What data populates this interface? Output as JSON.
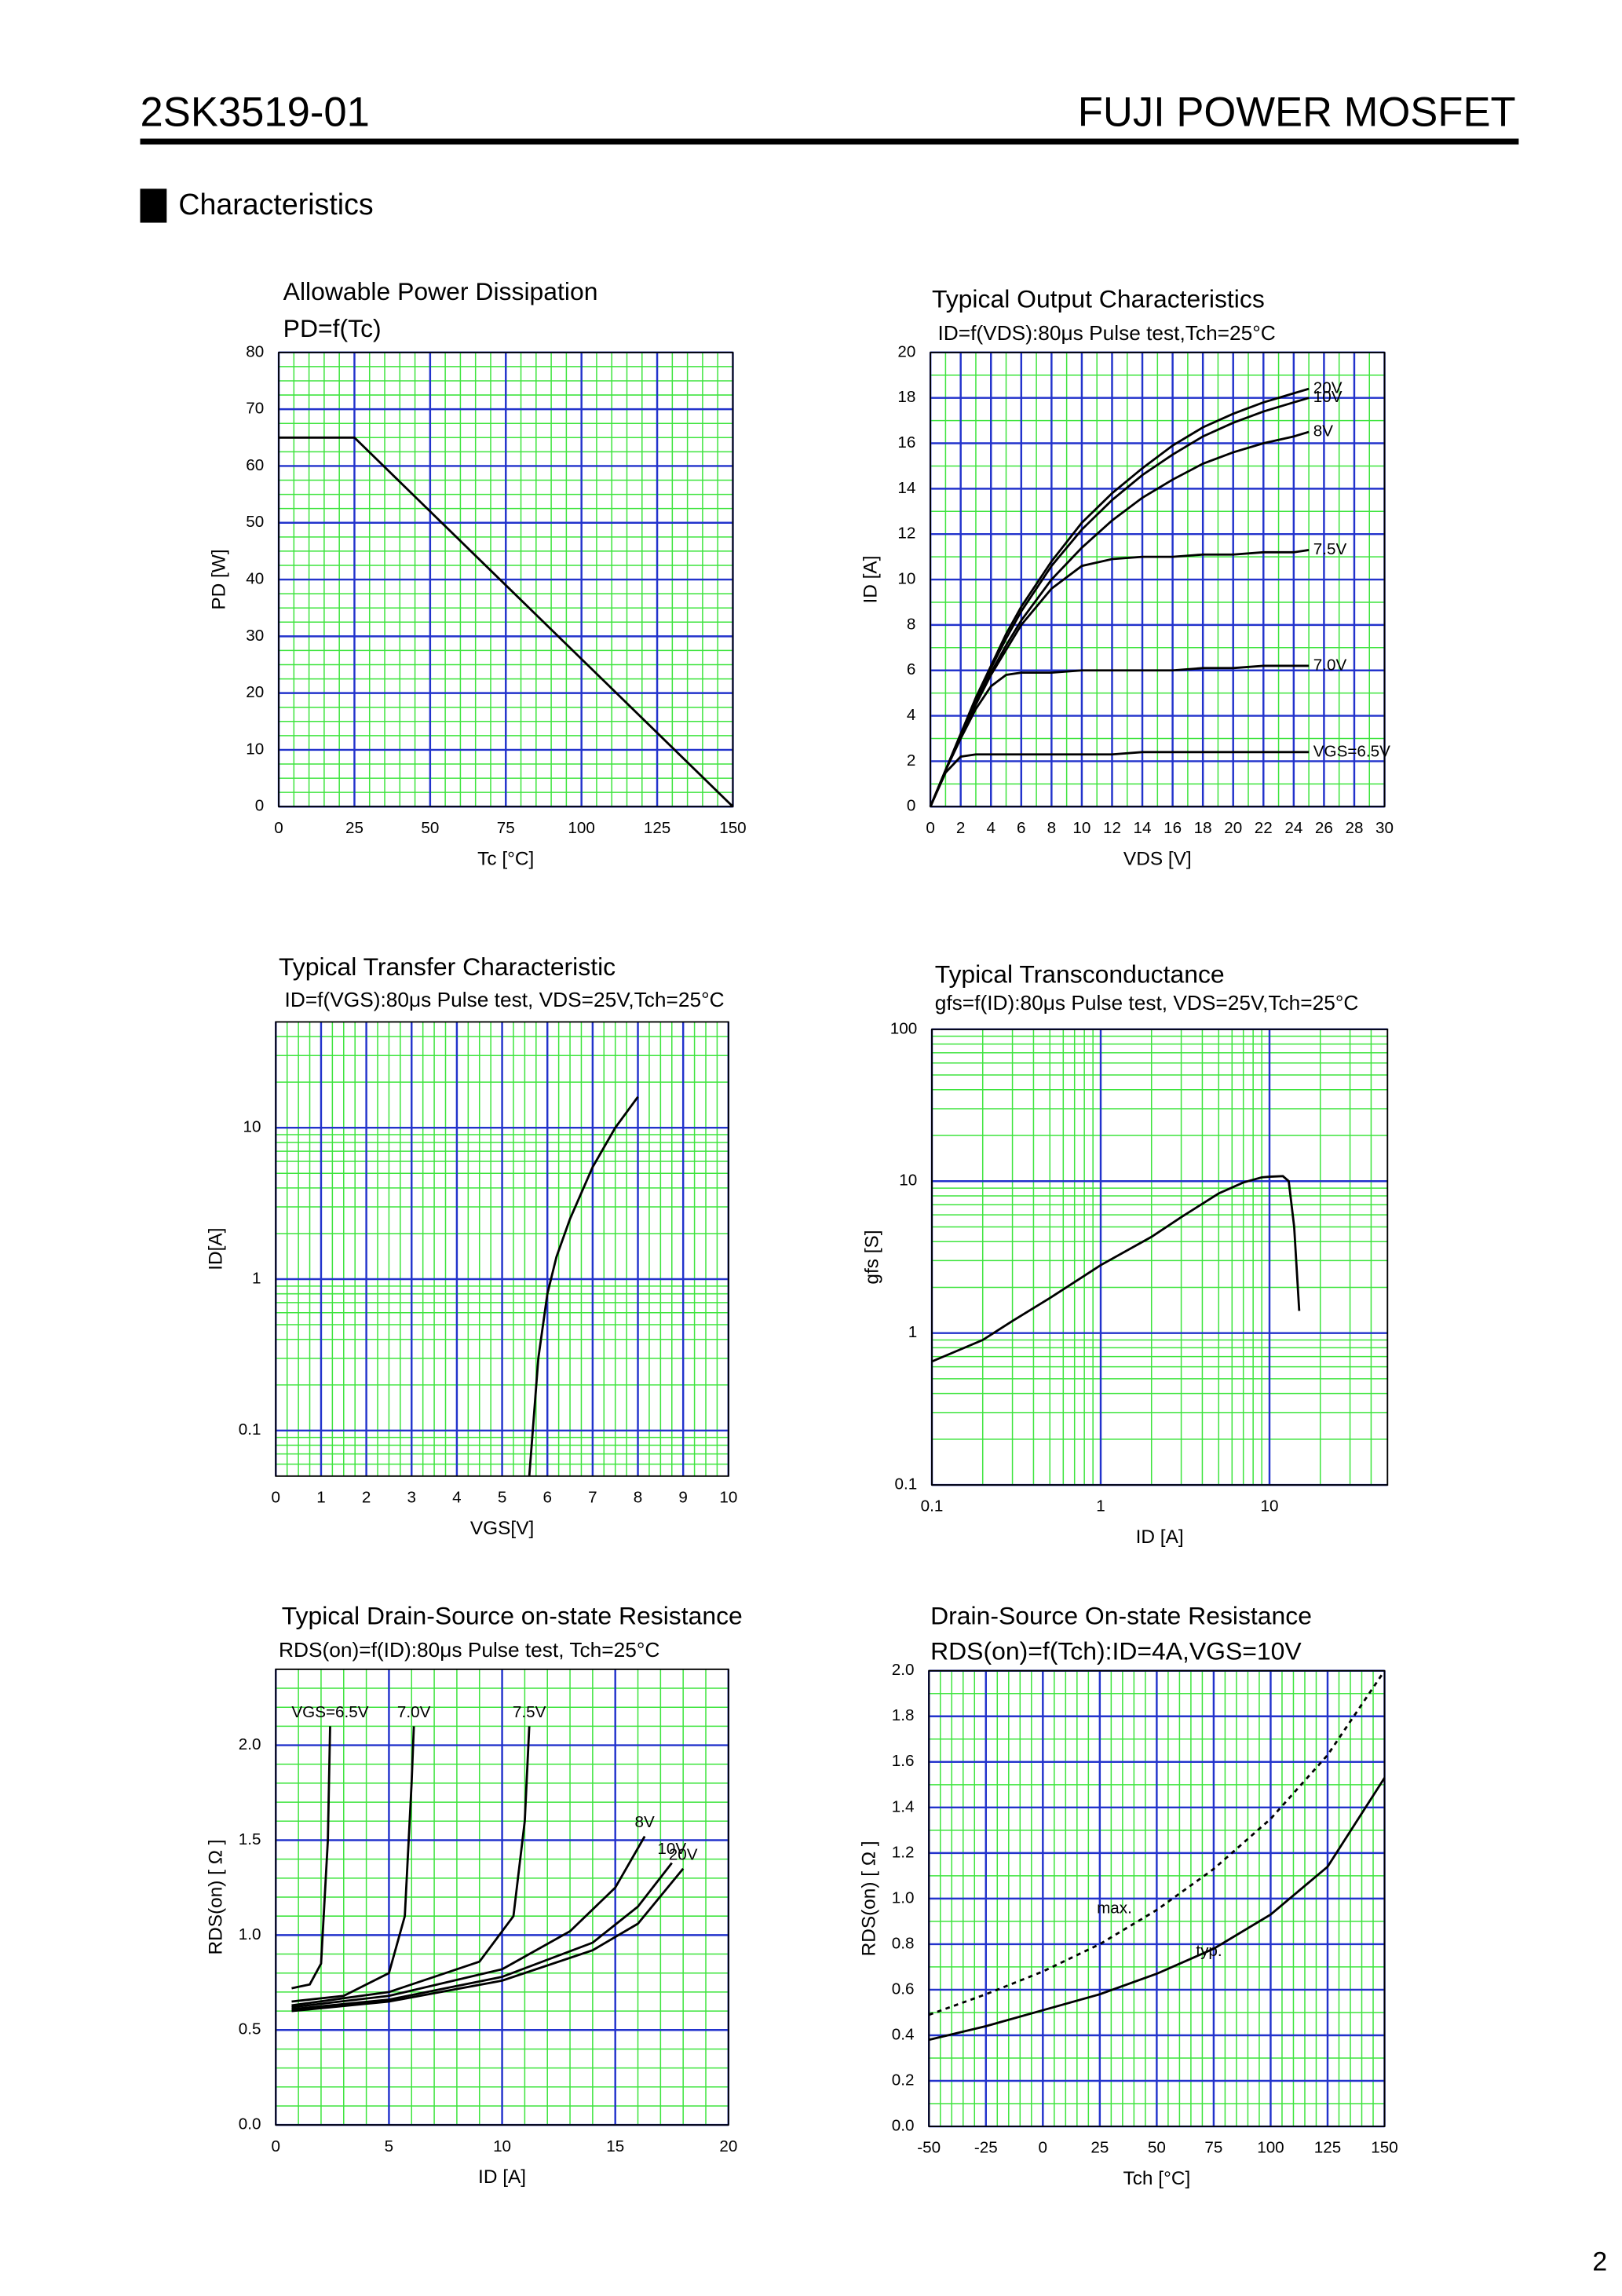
{
  "header": {
    "part": "2SK3519-01",
    "brand": "FUJI POWER MOSFET",
    "section": "Characteristics",
    "page": "2"
  },
  "chart_data": [
    {
      "type": "line",
      "title": "Allowable Power Dissipation",
      "subtitle": "PD=f(Tc)",
      "xlabel": "Tc [°C]",
      "ylabel": "PD [W]",
      "xlim": [
        0,
        150
      ],
      "ylim": [
        0,
        80
      ],
      "xticks": [
        0,
        25,
        50,
        75,
        100,
        125,
        150
      ],
      "yticks": [
        0,
        10,
        20,
        30,
        40,
        50,
        60,
        70,
        80
      ],
      "grid": true,
      "x": [
        0,
        25,
        150
      ],
      "values": [
        65,
        65,
        0
      ],
      "color": "#000000"
    },
    {
      "type": "line",
      "title": "Typical Output Characteristics",
      "subtitle": "ID=f(VDS):80μs Pulse test,Tch=25°C",
      "xlabel": "VDS [V]",
      "ylabel": "ID [A]",
      "xlim": [
        0,
        30
      ],
      "ylim": [
        0,
        20
      ],
      "xticks": [
        0,
        2,
        4,
        6,
        8,
        10,
        12,
        14,
        16,
        18,
        20,
        22,
        24,
        26,
        28,
        30
      ],
      "yticks": [
        0,
        2,
        4,
        6,
        8,
        10,
        12,
        14,
        16,
        18,
        20
      ],
      "grid": true,
      "x": [
        0,
        1,
        2,
        3,
        4,
        5,
        6,
        8,
        10,
        12,
        14,
        16,
        18,
        20,
        22,
        24,
        25
      ],
      "series": [
        {
          "name": "20V",
          "color": "#000000",
          "values": [
            0,
            1.6,
            3.2,
            4.8,
            6.2,
            7.6,
            8.8,
            10.8,
            12.5,
            13.8,
            14.9,
            15.9,
            16.7,
            17.3,
            17.8,
            18.2,
            18.4
          ]
        },
        {
          "name": "10V",
          "color": "#000000",
          "values": [
            0,
            1.6,
            3.2,
            4.7,
            6.1,
            7.4,
            8.6,
            10.6,
            12.2,
            13.5,
            14.6,
            15.5,
            16.3,
            16.9,
            17.4,
            17.8,
            18.0
          ]
        },
        {
          "name": "8V",
          "color": "#000000",
          "values": [
            0,
            1.6,
            3.1,
            4.6,
            5.9,
            7.1,
            8.2,
            10.0,
            11.4,
            12.6,
            13.6,
            14.4,
            15.1,
            15.6,
            16.0,
            16.3,
            16.5
          ]
        },
        {
          "name": "7.5V",
          "color": "#000000",
          "values": [
            0,
            1.6,
            3.1,
            4.5,
            5.8,
            6.9,
            8.0,
            9.6,
            10.6,
            10.9,
            11.0,
            11.0,
            11.1,
            11.1,
            11.2,
            11.2,
            11.3
          ]
        },
        {
          "name": "7.0V",
          "color": "#000000",
          "values": [
            0,
            1.6,
            3.0,
            4.3,
            5.3,
            5.8,
            5.9,
            5.9,
            6.0,
            6.0,
            6.0,
            6.0,
            6.1,
            6.1,
            6.2,
            6.2,
            6.2
          ]
        },
        {
          "name": "VGS=6.5V",
          "color": "#000000",
          "values": [
            0,
            1.5,
            2.2,
            2.3,
            2.3,
            2.3,
            2.3,
            2.3,
            2.3,
            2.3,
            2.4,
            2.4,
            2.4,
            2.4,
            2.4,
            2.4,
            2.4
          ]
        }
      ]
    },
    {
      "type": "line",
      "title": "Typical Transfer Characteristic",
      "subtitle": "ID=f(VGS):80μs Pulse test, VDS=25V,Tch=25°C",
      "xlabel": "VGS[V]",
      "ylabel": "ID[A]",
      "xlim": [
        0,
        10
      ],
      "ylim": [
        0.05,
        50
      ],
      "yscale": "log",
      "xticks": [
        0,
        1,
        2,
        3,
        4,
        5,
        6,
        7,
        8,
        9,
        10
      ],
      "yticks": [
        0.1,
        1,
        10
      ],
      "grid": true,
      "x": [
        5.6,
        5.8,
        6.0,
        6.2,
        6.5,
        7.0,
        7.5,
        8.0
      ],
      "values": [
        0.05,
        0.3,
        0.8,
        1.4,
        2.5,
        5.5,
        10,
        16
      ],
      "color": "#000000"
    },
    {
      "type": "line",
      "title": "Typical Transconductance",
      "subtitle": "gfs=f(ID):80μs Pulse test, VDS=25V,Tch=25°C",
      "xlabel": "ID [A]",
      "ylabel": "gfs [S]",
      "xlim": [
        0.1,
        50
      ],
      "ylim": [
        0.1,
        100
      ],
      "xscale": "log",
      "yscale": "log",
      "xticks": [
        0.1,
        1,
        10
      ],
      "yticks": [
        0.1,
        1,
        10,
        100
      ],
      "grid": true,
      "x": [
        0.1,
        0.2,
        0.3,
        0.5,
        1,
        2,
        3,
        5,
        7,
        9,
        10,
        12,
        13,
        14,
        15
      ],
      "values": [
        0.65,
        0.9,
        1.2,
        1.7,
        2.8,
        4.3,
        5.8,
        8.3,
        9.8,
        10.6,
        10.7,
        10.8,
        10,
        5,
        1.4
      ],
      "color": "#000000"
    },
    {
      "type": "line",
      "title": "Typical Drain-Source on-state Resistance",
      "subtitle": "RDS(on)=f(ID):80μs Pulse test, Tch=25°C",
      "xlabel": "ID [A]",
      "ylabel": "RDS(on) [ Ω ]",
      "xlim": [
        0,
        20
      ],
      "ylim": [
        0,
        2.4
      ],
      "xticks": [
        0,
        5,
        10,
        15,
        20
      ],
      "yticks": [
        {
          "value": 0,
          "label": "0.0"
        },
        0.5,
        {
          "value": 1,
          "label": "1.0"
        },
        1.5,
        {
          "value": 2,
          "label": "2.0"
        }
      ],
      "grid": true,
      "series": [
        {
          "name": "VGS=6.5V",
          "color": "#000000",
          "x": [
            0.7,
            1.5,
            2.0,
            2.3,
            2.4
          ],
          "values": [
            0.72,
            0.74,
            0.85,
            1.5,
            2.1
          ]
        },
        {
          "name": "7.0V",
          "color": "#000000",
          "x": [
            0.7,
            3,
            5,
            5.7,
            6.0,
            6.1
          ],
          "values": [
            0.65,
            0.68,
            0.8,
            1.1,
            1.8,
            2.1
          ]
        },
        {
          "name": "7.5V",
          "color": "#000000",
          "x": [
            0.7,
            5,
            9,
            10.5,
            11.0,
            11.2
          ],
          "values": [
            0.63,
            0.7,
            0.86,
            1.1,
            1.6,
            2.1
          ]
        },
        {
          "name": "8V",
          "color": "#000000",
          "x": [
            0.7,
            5,
            10,
            13,
            15,
            16.3
          ],
          "values": [
            0.62,
            0.68,
            0.82,
            1.02,
            1.25,
            1.52
          ]
        },
        {
          "name": "10V",
          "color": "#000000",
          "x": [
            0.7,
            5,
            10,
            14,
            16,
            17.5
          ],
          "values": [
            0.61,
            0.66,
            0.78,
            0.96,
            1.15,
            1.38
          ]
        },
        {
          "name": "20V",
          "color": "#000000",
          "x": [
            0.7,
            5,
            10,
            14,
            16,
            18
          ],
          "values": [
            0.6,
            0.65,
            0.76,
            0.92,
            1.06,
            1.35
          ]
        }
      ]
    },
    {
      "type": "line",
      "title": "Drain-Source On-state Resistance",
      "subtitle": "RDS(on)=f(Tch):ID=4A,VGS=10V",
      "xlabel": "Tch [°C]",
      "ylabel": "RDS(on) [ Ω ]",
      "xlim": [
        -50,
        150
      ],
      "ylim": [
        0,
        2
      ],
      "xticks": [
        -50,
        -25,
        0,
        25,
        50,
        75,
        100,
        125,
        150
      ],
      "yticks": [
        {
          "value": 0,
          "label": "0.0"
        },
        0.2,
        0.4,
        0.6,
        0.8,
        {
          "value": 1,
          "label": "1.0"
        },
        1.2,
        1.4,
        1.6,
        1.8,
        {
          "value": 2,
          "label": "2.0"
        }
      ],
      "grid": true,
      "x": [
        -50,
        -25,
        0,
        25,
        50,
        75,
        100,
        125,
        150
      ],
      "series": [
        {
          "name": "max.",
          "color": "#000000",
          "linestyle": "dashed",
          "values": [
            0.49,
            0.58,
            0.68,
            0.8,
            0.95,
            1.13,
            1.35,
            1.63,
            2.0
          ]
        },
        {
          "name": "typ.",
          "color": "#000000",
          "values": [
            0.38,
            0.44,
            0.51,
            0.58,
            0.67,
            0.78,
            0.93,
            1.14,
            1.53
          ]
        }
      ]
    }
  ]
}
